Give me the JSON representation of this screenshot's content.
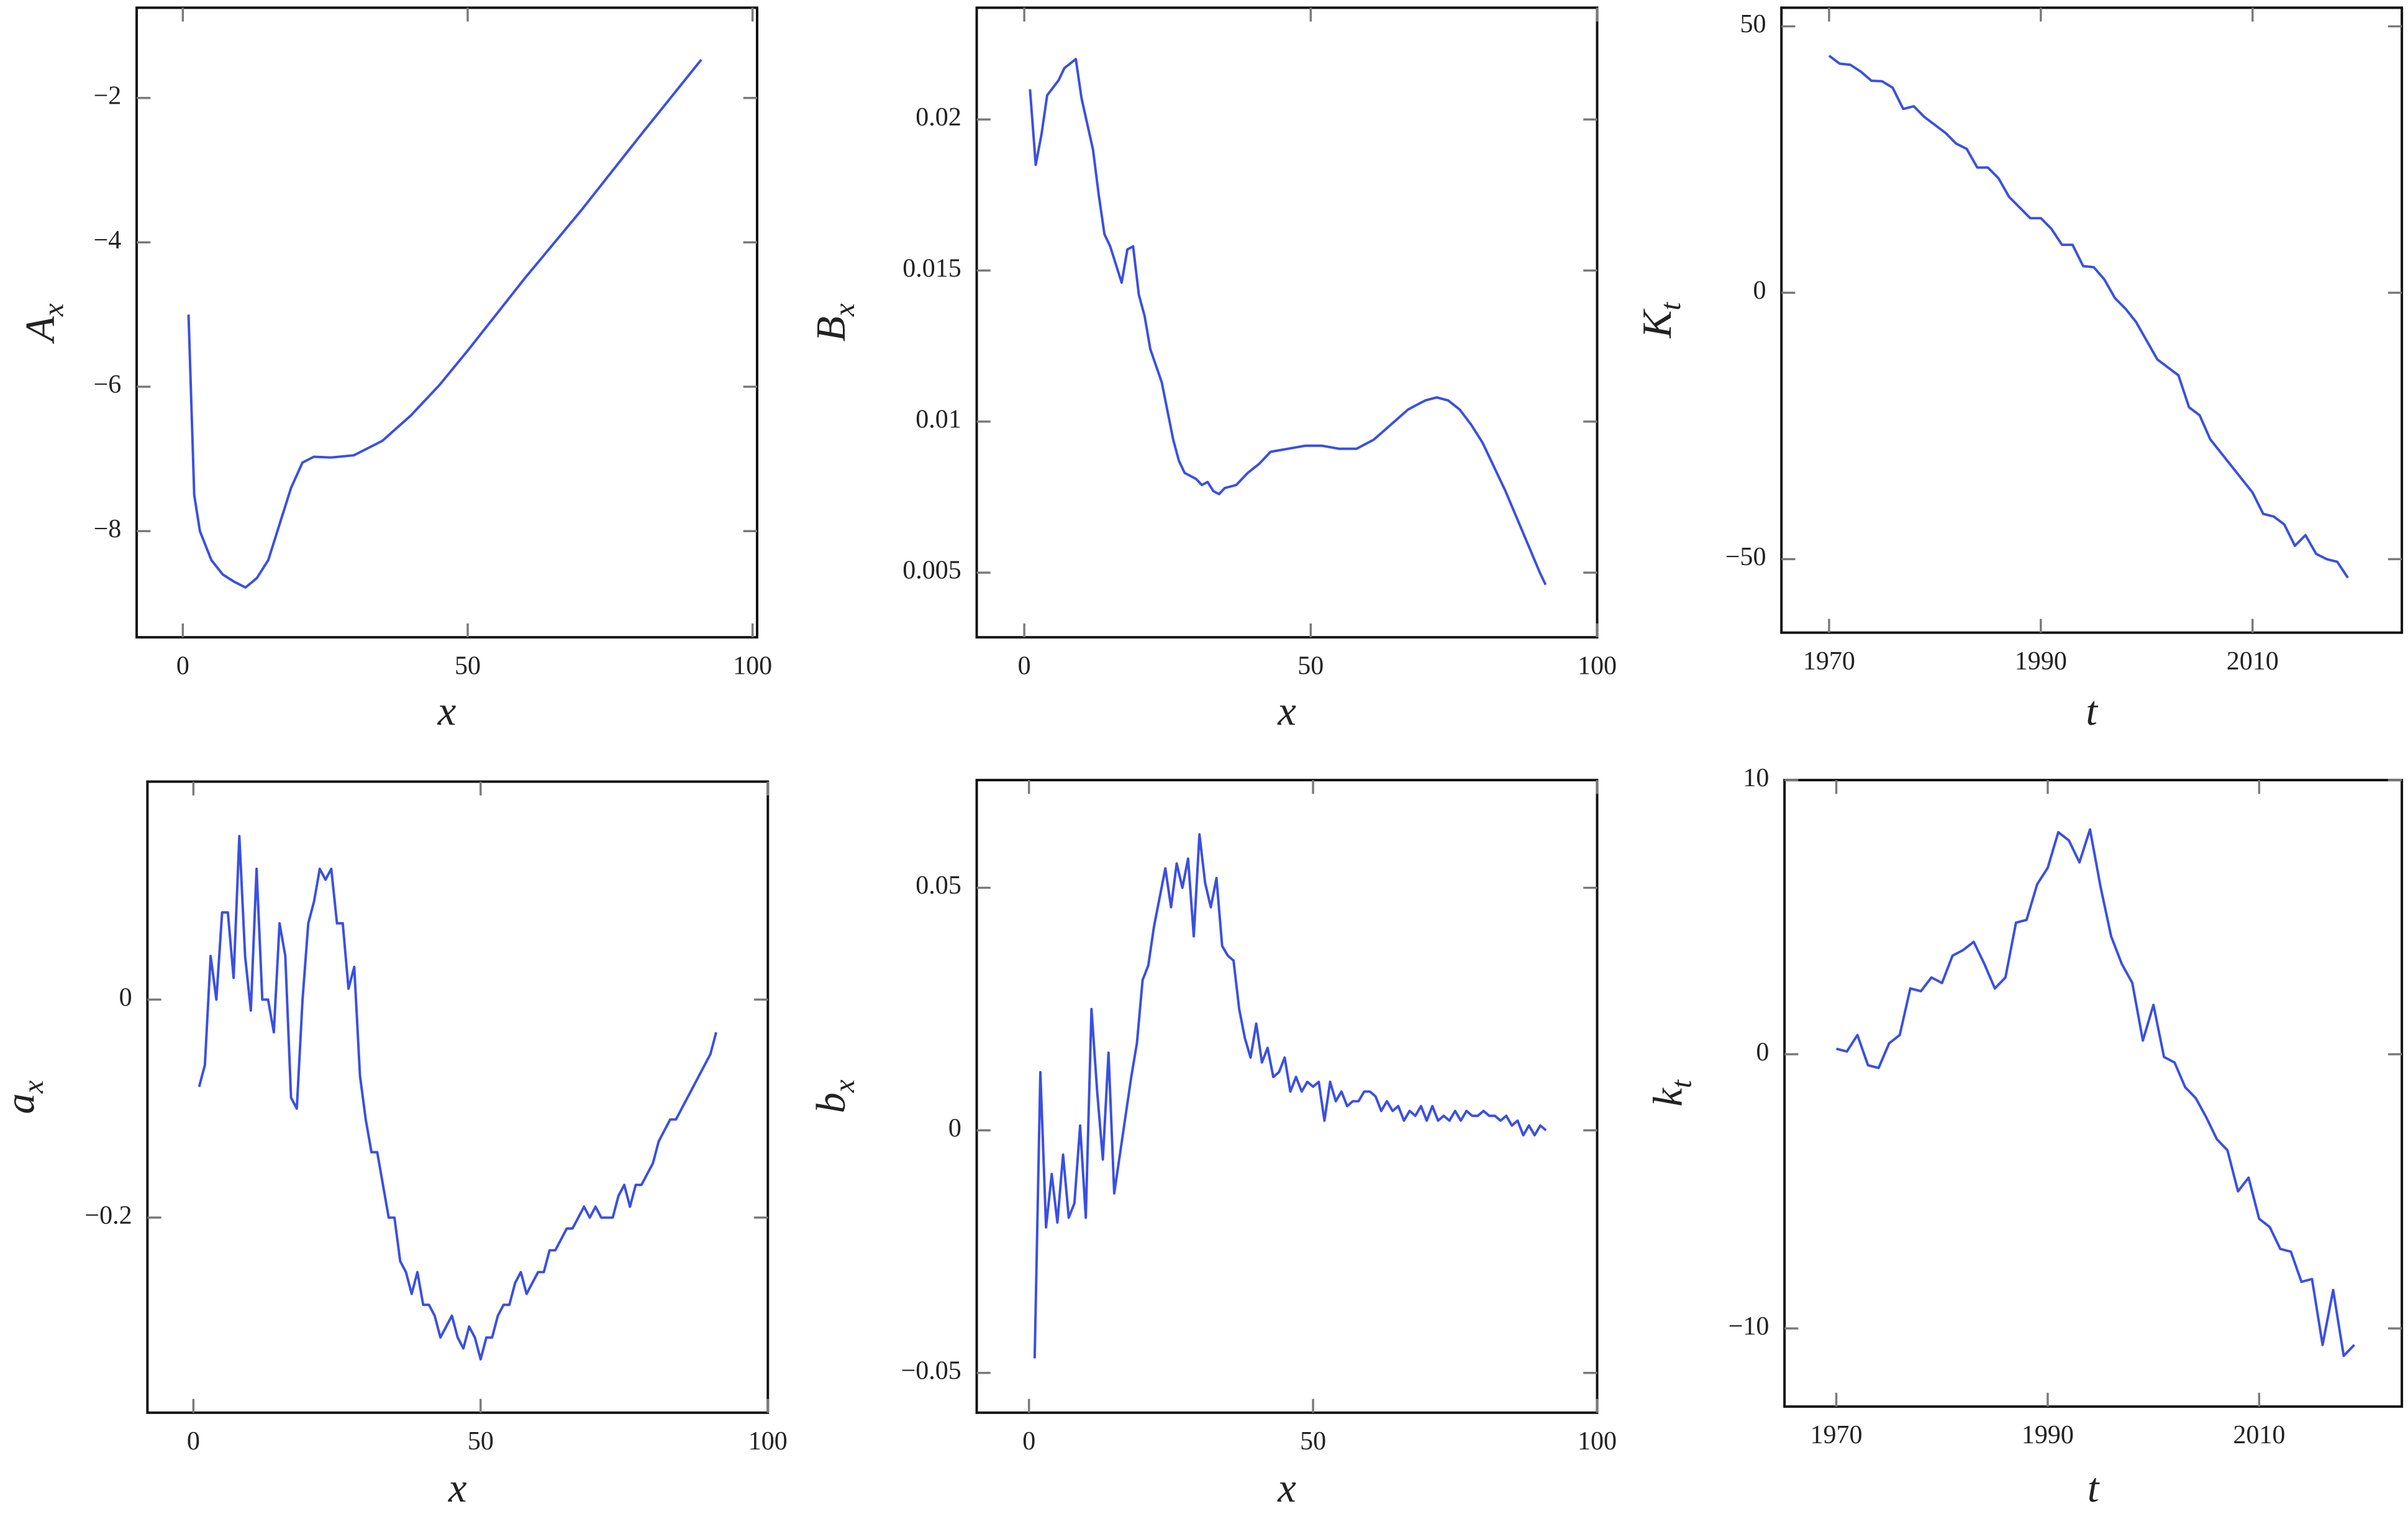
{
  "chart_data": [
    {
      "type": "line",
      "ylabel": [
        "A",
        "x"
      ],
      "xlabel": "x",
      "color": "#3a4fe3",
      "x": [
        1,
        2,
        3,
        5,
        7,
        9,
        11,
        13,
        15,
        17,
        19,
        21,
        23,
        26,
        30,
        35,
        40,
        45,
        50,
        60,
        70,
        80,
        91
      ],
      "values": [
        -5.0,
        -7.5,
        -8.0,
        -8.4,
        -8.6,
        -8.7,
        -8.78,
        -8.65,
        -8.4,
        -7.9,
        -7.4,
        -7.05,
        -6.97,
        -6.98,
        -6.95,
        -6.75,
        -6.4,
        -5.98,
        -5.5,
        -4.5,
        -3.55,
        -2.55,
        -1.47
      ],
      "xlim": [
        -8.1,
        100.8
      ],
      "ylim": [
        -9.47,
        -0.75
      ],
      "xticks": [
        0,
        50,
        100
      ],
      "yticks": [
        {
          "value": -8,
          "label": "−8"
        },
        {
          "value": -6,
          "label": "−6"
        },
        {
          "value": -4,
          "label": "−4"
        },
        {
          "value": -2,
          "label": "−2"
        }
      ]
    },
    {
      "type": "line",
      "ylabel": [
        "B",
        "x"
      ],
      "xlabel": "x",
      "color": "#3a4fe3",
      "x": [
        1,
        2,
        3,
        4,
        6,
        7,
        9,
        10,
        12,
        13,
        14,
        15,
        16,
        17,
        18,
        19,
        20,
        21,
        22,
        24,
        26,
        27,
        28,
        29,
        30,
        31,
        32,
        33,
        34,
        35,
        37,
        39,
        41,
        43,
        46,
        49,
        52,
        55,
        58,
        61,
        64,
        67,
        70,
        72,
        74,
        76,
        78,
        80,
        82,
        84,
        86,
        88,
        90,
        91
      ],
      "values": [
        0.021,
        0.0185,
        0.0195,
        0.0208,
        0.0213,
        0.0217,
        0.022,
        0.0207,
        0.019,
        0.0175,
        0.0162,
        0.0158,
        0.0152,
        0.0146,
        0.0157,
        0.0158,
        0.0142,
        0.0135,
        0.0124,
        0.0113,
        0.0094,
        0.0087,
        0.0083,
        0.0082,
        0.0081,
        0.0079,
        0.008,
        0.0077,
        0.0076,
        0.0078,
        0.0079,
        0.0083,
        0.0086,
        0.009,
        0.0091,
        0.0092,
        0.0092,
        0.0091,
        0.0091,
        0.0094,
        0.0099,
        0.0104,
        0.0107,
        0.0108,
        0.0107,
        0.0104,
        0.0099,
        0.0093,
        0.0085,
        0.0077,
        0.0068,
        0.0059,
        0.005,
        0.0046
      ],
      "xlim": [
        -8.3,
        100
      ],
      "ylim": [
        0.00286,
        0.0237
      ],
      "xticks": [
        0,
        50,
        100
      ],
      "yticks": [
        0.005,
        0.01,
        0.015,
        0.02
      ]
    },
    {
      "type": "line",
      "ylabel": [
        "K",
        "t"
      ],
      "xlabel": "t",
      "color": "#3a4fe3",
      "x": [
        1970,
        1971,
        1972,
        1973,
        1974,
        1975,
        1976,
        1977,
        1978,
        1979,
        1980,
        1981,
        1982,
        1983,
        1984,
        1985,
        1986,
        1987,
        1988,
        1989,
        1990,
        1991,
        1992,
        1993,
        1994,
        1995,
        1996,
        1997,
        1998,
        1999,
        2000,
        2001,
        2002,
        2003,
        2004,
        2005,
        2006,
        2007,
        2008,
        2009,
        2010,
        2011,
        2012,
        2013,
        2014,
        2015,
        2016,
        2017,
        2018,
        2019
      ],
      "values": [
        44.5,
        43,
        42.8,
        41.5,
        39.8,
        39.7,
        38.5,
        34.5,
        35,
        33,
        31.5,
        30,
        28,
        27,
        23.5,
        23.5,
        21.5,
        18,
        16,
        14,
        14,
        12,
        9,
        9,
        5,
        4.8,
        2.5,
        -1,
        -3,
        -5.5,
        -9,
        -12.5,
        -14,
        -15.5,
        -21.5,
        -23,
        -27.5,
        -30,
        -32.5,
        -35,
        -37.5,
        -41.5,
        -42,
        -43.5,
        -47.5,
        -45.5,
        -49,
        -50,
        -50.5,
        -53.5
      ],
      "xlim": [
        1965.5,
        2024.1
      ],
      "ylim": [
        -63.8,
        53.5
      ],
      "xticks": [
        1970,
        1990,
        2010
      ],
      "yticks": [
        {
          "value": -50,
          "label": "−50"
        },
        0,
        50
      ]
    },
    {
      "type": "line",
      "ylabel": [
        "a",
        "x"
      ],
      "xlabel": "x",
      "color": "#3a4fe3",
      "x": [
        1,
        2,
        3,
        4,
        5,
        6,
        7,
        8,
        9,
        10,
        11,
        12,
        13,
        14,
        15,
        16,
        17,
        18,
        19,
        20,
        21,
        22,
        23,
        24,
        25,
        26,
        27,
        28,
        29,
        30,
        31,
        32,
        33,
        34,
        35,
        36,
        37,
        38,
        39,
        40,
        41,
        42,
        43,
        44,
        45,
        46,
        47,
        48,
        49,
        50,
        51,
        52,
        53,
        54,
        55,
        56,
        57,
        58,
        59,
        60,
        61,
        62,
        63,
        64,
        65,
        66,
        67,
        68,
        69,
        70,
        71,
        72,
        73,
        74,
        75,
        76,
        77,
        78,
        79,
        80,
        81,
        82,
        83,
        84,
        85,
        86,
        87,
        88,
        89,
        90,
        91
      ],
      "values": [
        -0.08,
        -0.06,
        0.04,
        0.0,
        0.08,
        0.08,
        0.02,
        0.15,
        0.04,
        -0.01,
        0.12,
        0.0,
        0.0,
        -0.03,
        0.07,
        0.04,
        -0.09,
        -0.1,
        0.0,
        0.07,
        0.09,
        0.12,
        0.11,
        0.12,
        0.07,
        0.07,
        0.01,
        0.03,
        -0.07,
        -0.11,
        -0.14,
        -0.14,
        -0.17,
        -0.2,
        -0.2,
        -0.24,
        -0.25,
        -0.27,
        -0.25,
        -0.28,
        -0.28,
        -0.29,
        -0.31,
        -0.3,
        -0.29,
        -0.31,
        -0.32,
        -0.3,
        -0.31,
        -0.33,
        -0.31,
        -0.31,
        -0.29,
        -0.28,
        -0.28,
        -0.26,
        -0.25,
        -0.27,
        -0.26,
        -0.25,
        -0.25,
        -0.23,
        -0.23,
        -0.22,
        -0.21,
        -0.21,
        -0.2,
        -0.19,
        -0.2,
        -0.19,
        -0.2,
        -0.2,
        -0.2,
        -0.18,
        -0.17,
        -0.19,
        -0.17,
        -0.17,
        -0.16,
        -0.15,
        -0.13,
        -0.12,
        -0.11,
        -0.11,
        -0.1,
        -0.09,
        -0.08,
        -0.07,
        -0.06,
        -0.05,
        -0.03
      ],
      "xlim": [
        -8.0,
        100
      ],
      "ylim": [
        -0.379,
        0.2
      ],
      "xticks": [
        0,
        50,
        100
      ],
      "yticks": [
        {
          "value": -0.2,
          "label": "−0.2"
        },
        0
      ]
    },
    {
      "type": "line",
      "ylabel": [
        "b",
        "x"
      ],
      "xlabel": "x",
      "color": "#3a4fe3",
      "x": [
        1,
        2,
        3,
        4,
        5,
        6,
        7,
        8,
        9,
        10,
        11,
        12,
        13,
        14,
        15,
        16,
        17,
        18,
        19,
        20,
        21,
        22,
        23,
        24,
        25,
        26,
        27,
        28,
        29,
        30,
        31,
        32,
        33,
        34,
        35,
        36,
        37,
        38,
        39,
        40,
        41,
        42,
        43,
        44,
        45,
        46,
        47,
        48,
        49,
        50,
        51,
        52,
        53,
        54,
        55,
        56,
        57,
        58,
        59,
        60,
        61,
        62,
        63,
        64,
        65,
        66,
        67,
        68,
        69,
        70,
        71,
        72,
        73,
        74,
        75,
        76,
        77,
        78,
        79,
        80,
        81,
        82,
        83,
        84,
        85,
        86,
        87,
        88,
        89,
        90,
        91
      ],
      "values": [
        -0.047,
        0.012,
        -0.02,
        -0.009,
        -0.019,
        -0.005,
        -0.018,
        -0.015,
        0.001,
        -0.018,
        0.025,
        0.008,
        -0.006,
        0.016,
        -0.013,
        -0.005,
        0.003,
        0.011,
        0.018,
        0.031,
        0.034,
        0.042,
        0.048,
        0.054,
        0.046,
        0.055,
        0.05,
        0.056,
        0.04,
        0.061,
        0.051,
        0.046,
        0.052,
        0.038,
        0.036,
        0.035,
        0.025,
        0.019,
        0.015,
        0.022,
        0.014,
        0.017,
        0.011,
        0.012,
        0.015,
        0.008,
        0.011,
        0.008,
        0.01,
        0.009,
        0.01,
        0.002,
        0.01,
        0.006,
        0.008,
        0.005,
        0.006,
        0.006,
        0.008,
        0.008,
        0.007,
        0.004,
        0.006,
        0.004,
        0.005,
        0.002,
        0.004,
        0.003,
        0.005,
        0.002,
        0.005,
        0.002,
        0.003,
        0.002,
        0.004,
        0.002,
        0.004,
        0.003,
        0.003,
        0.004,
        0.003,
        0.003,
        0.002,
        0.003,
        0.001,
        0.002,
        -0.001,
        0.001,
        -0.001,
        0.001,
        0.0
      ],
      "xlim": [
        -9.2,
        100
      ],
      "ylim": [
        -0.0582,
        0.0722
      ],
      "xticks": [
        0,
        50,
        100
      ],
      "yticks": [
        {
          "value": -0.05,
          "label": "−0.05"
        },
        0,
        0.05
      ]
    },
    {
      "type": "line",
      "ylabel": [
        "k",
        "t"
      ],
      "xlabel": "t",
      "color": "#3a4fe3",
      "x": [
        1970,
        1971,
        1972,
        1973,
        1974,
        1975,
        1976,
        1977,
        1978,
        1979,
        1980,
        1981,
        1982,
        1983,
        1984,
        1985,
        1986,
        1987,
        1988,
        1989,
        1990,
        1991,
        1992,
        1993,
        1994,
        1995,
        1996,
        1997,
        1998,
        1999,
        2000,
        2001,
        2002,
        2003,
        2004,
        2005,
        2006,
        2007,
        2008,
        2009,
        2010,
        2011,
        2012,
        2013,
        2014,
        2015,
        2016,
        2017,
        2018,
        2019
      ],
      "values": [
        0.2,
        0.1,
        0.7,
        -0.4,
        -0.5,
        0.4,
        0.7,
        2.4,
        2.3,
        2.8,
        2.6,
        3.6,
        3.8,
        4.1,
        3.3,
        2.4,
        2.8,
        4.8,
        4.9,
        6.2,
        6.8,
        8.1,
        7.8,
        7.0,
        8.2,
        6.1,
        4.3,
        3.3,
        2.6,
        0.5,
        1.8,
        -0.1,
        -0.3,
        -1.2,
        -1.6,
        -2.3,
        -3.1,
        -3.5,
        -5.0,
        -4.5,
        -6.0,
        -6.3,
        -7.1,
        -7.2,
        -8.3,
        -8.2,
        -10.6,
        -8.6,
        -11.0,
        -10.6
      ],
      "xlim": [
        1965.1,
        2023.5
      ],
      "ylim": [
        -12.85,
        10
      ],
      "xticks": [
        1970,
        1990,
        2010
      ],
      "yticks": [
        {
          "value": -10,
          "label": "−10"
        },
        0,
        10
      ]
    }
  ]
}
